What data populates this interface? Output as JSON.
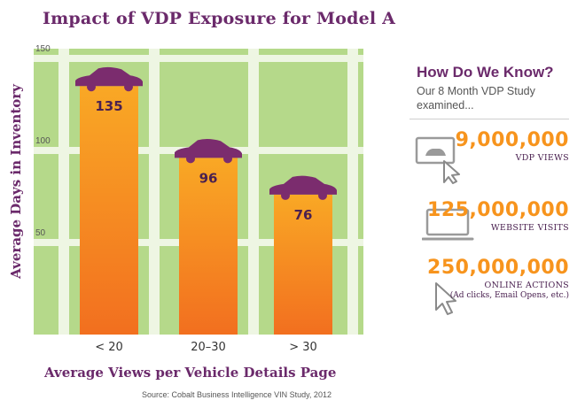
{
  "title": "Impact of VDP Exposure for Model A",
  "chart_data": {
    "type": "bar",
    "categories": [
      "< 20",
      "20–30",
      "> 30"
    ],
    "values": [
      135,
      96,
      76
    ],
    "ylabel": "Average Days in Inventory",
    "xlabel": "Average Views per Vehicle Details Page",
    "yticks": [
      50,
      100,
      150
    ],
    "ylim": [
      0,
      150
    ],
    "grid": true,
    "colors": {
      "bar_top": "#f9a825",
      "bar_bottom": "#f26f1f",
      "grid_bg": "#b5d98a",
      "grid_line": "#eef6e3",
      "car": "#7b2c6e"
    }
  },
  "source": "Source: Cobalt Business Intelligence VIN Study, 2012",
  "panel": {
    "title": "How Do We Know?",
    "subtitle": "Our 8 Month VDP Study examined...",
    "stats": [
      {
        "number": "9,000,000",
        "label": "VDP VIEWS",
        "icon": "monitor-car-cursor-icon"
      },
      {
        "number": "125,000,000",
        "label": "WEBSITE VISITS",
        "icon": "laptop-icon"
      },
      {
        "number": "250,000,000",
        "label": "ONLINE ACTIONS",
        "note": "(Ad clicks, Email Opens, etc.)",
        "icon": "cursor-arrow-icon"
      }
    ]
  }
}
